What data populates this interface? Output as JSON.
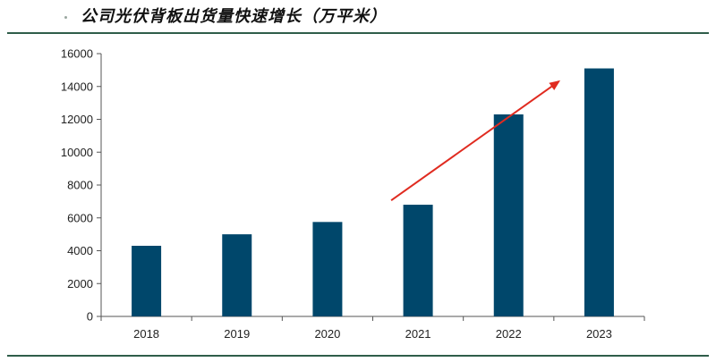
{
  "page": {
    "title": "公司光伏背板出货量快速增长（万平米）"
  },
  "colors": {
    "bar": "#00476b",
    "arrow": "#e02b20",
    "rule": "#2f5d4a",
    "axis": "#555555"
  },
  "chart_data": {
    "type": "bar",
    "title": "",
    "xlabel": "",
    "ylabel": "",
    "categories": [
      "2018",
      "2019",
      "2020",
      "2021",
      "2022",
      "2023"
    ],
    "values": [
      4300,
      5000,
      5750,
      6800,
      12300,
      15100
    ],
    "ylim": [
      0,
      16000
    ],
    "yticks": [
      0,
      2000,
      4000,
      6000,
      8000,
      10000,
      12000,
      14000,
      16000
    ],
    "grid": false,
    "legend": "none",
    "annotation": {
      "type": "arrow",
      "from_category": "2021",
      "to_category": "2023",
      "from_value": 7500,
      "to_value": 14200
    }
  }
}
